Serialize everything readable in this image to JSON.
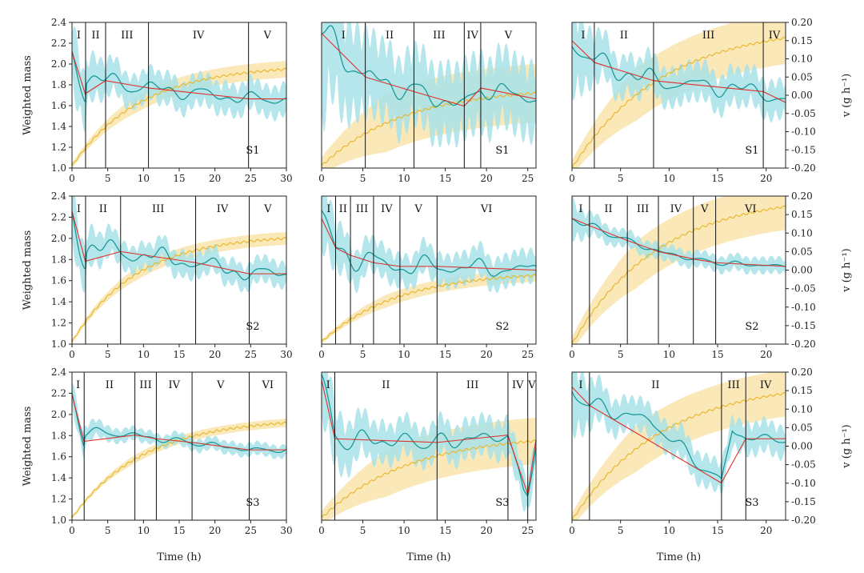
{
  "colors": {
    "mass": "#e8b830",
    "mass_band": "#fbe5b0",
    "rate": "#1a9a9a",
    "rate_band": "#a8e2e8",
    "fit": "#e0302a",
    "boundary": "#111111"
  },
  "axes": {
    "left_label": "Weighted mass",
    "right_label": "v (g h⁻¹)",
    "x_label": "Time (h)",
    "left_ticks": [
      "1.0",
      "1.2",
      "1.4",
      "1.6",
      "1.8",
      "2.0",
      "2.2",
      "2.4"
    ],
    "right_ticks": [
      "-0.20",
      "-0.15",
      "-0.10",
      "-0.05",
      "0.00",
      "0.05",
      "0.10",
      "0.15",
      "0.20"
    ]
  },
  "chart_data": [
    {
      "type": "line",
      "sample": "S1",
      "xmax": 30,
      "xticks": [
        0,
        5,
        10,
        15,
        20,
        25,
        30
      ],
      "boundaries": [
        1.9,
        4.7,
        10.7,
        24.7
      ],
      "phases": [
        "I",
        "II",
        "III",
        "IV",
        "V"
      ],
      "mass_start": 1.02,
      "mass_end": 1.95,
      "mass_shape": 0.32,
      "mass_band": 0.08,
      "rate_base": [
        [
          0,
          0.12
        ],
        [
          1.9,
          0.0
        ],
        [
          2.0,
          0.05
        ],
        [
          4.7,
          0.04
        ],
        [
          10.7,
          0.02
        ],
        [
          24.7,
          -0.01
        ],
        [
          30,
          -0.01
        ]
      ],
      "rate_osc": 0.035,
      "rate_band": 0.05,
      "ylim": [
        1.0,
        2.4
      ],
      "v_lim": [
        -0.2,
        0.2
      ]
    },
    {
      "type": "line",
      "sample": "S1",
      "xmax": 26,
      "xticks": [
        0,
        5,
        10,
        15,
        20,
        25
      ],
      "boundaries": [
        5.3,
        11.2,
        17.3,
        19.3
      ],
      "phases": [
        "I",
        "II",
        "III",
        "IV",
        "V"
      ],
      "mass_start": 1.02,
      "mass_end": 1.72,
      "mass_shape": 0.38,
      "mass_band": 0.28,
      "rate_base": [
        [
          0,
          0.17
        ],
        [
          5.3,
          0.05
        ],
        [
          11.2,
          0.01
        ],
        [
          17.3,
          -0.03
        ],
        [
          19.3,
          0.02
        ],
        [
          26,
          -0.01
        ]
      ],
      "rate_osc": 0.05,
      "rate_band": 0.12,
      "ylim": [
        1.0,
        2.4
      ],
      "v_lim": [
        -0.2,
        0.2
      ]
    },
    {
      "type": "line",
      "sample": "S1",
      "xmax": 22,
      "xticks": [
        0,
        5,
        10,
        15,
        20
      ],
      "boundaries": [
        2.3,
        8.4,
        19.7
      ],
      "phases": [
        "I",
        "II",
        "III",
        "IV"
      ],
      "mass_start": 1.0,
      "mass_end": 2.25,
      "mass_shape": 0.42,
      "mass_band": 0.25,
      "rate_base": [
        [
          0,
          0.15
        ],
        [
          2.3,
          0.09
        ],
        [
          8.4,
          0.04
        ],
        [
          19.7,
          0.01
        ],
        [
          22,
          -0.02
        ]
      ],
      "rate_osc": 0.045,
      "rate_band": 0.06,
      "ylim": [
        1.0,
        2.4
      ],
      "v_lim": [
        -0.2,
        0.2
      ]
    },
    {
      "type": "line",
      "sample": "S2",
      "xmax": 30,
      "xticks": [
        0,
        5,
        10,
        15,
        20,
        25,
        30
      ],
      "boundaries": [
        1.9,
        6.8,
        17.3,
        24.8
      ],
      "phases": [
        "I",
        "II",
        "III",
        "IV",
        "V"
      ],
      "mass_start": 1.02,
      "mass_end": 2.0,
      "mass_shape": 0.3,
      "mass_band": 0.06,
      "rate_base": [
        [
          0,
          0.16
        ],
        [
          1.9,
          0.02
        ],
        [
          2.0,
          0.06
        ],
        [
          6.8,
          0.05
        ],
        [
          17.3,
          0.02
        ],
        [
          24.8,
          -0.01
        ],
        [
          30,
          -0.01
        ]
      ],
      "rate_osc": 0.04,
      "rate_band": 0.04,
      "ylim": [
        1.0,
        2.4
      ],
      "v_lim": [
        -0.2,
        0.2
      ]
    },
    {
      "type": "line",
      "sample": "S2",
      "xmax": 26,
      "xticks": [
        0,
        5,
        10,
        15,
        20,
        25
      ],
      "boundaries": [
        1.7,
        3.5,
        6.3,
        9.5,
        14.0
      ],
      "phases": [
        "I",
        "II",
        "III",
        "IV",
        "V",
        "VI"
      ],
      "mass_start": 1.02,
      "mass_end": 1.65,
      "mass_shape": 0.35,
      "mass_band": 0.06,
      "rate_base": [
        [
          0,
          0.14
        ],
        [
          1.7,
          0.06
        ],
        [
          3.5,
          0.04
        ],
        [
          6.3,
          0.02
        ],
        [
          9.5,
          0.01
        ],
        [
          14,
          0.01
        ],
        [
          26,
          0.0
        ]
      ],
      "rate_osc": 0.045,
      "rate_band": 0.05,
      "ylim": [
        1.0,
        2.4
      ],
      "v_lim": [
        -0.2,
        0.2
      ]
    },
    {
      "type": "line",
      "sample": "S2",
      "xmax": 22,
      "xticks": [
        0,
        5,
        10,
        15,
        20
      ],
      "boundaries": [
        1.8,
        5.7,
        8.9,
        12.5,
        14.8
      ],
      "phases": [
        "I",
        "II",
        "III",
        "IV",
        "V",
        "VI"
      ],
      "mass_start": 1.0,
      "mass_end": 2.3,
      "mass_shape": 0.4,
      "mass_band": 0.22,
      "rate_base": [
        [
          0,
          0.14
        ],
        [
          1.8,
          0.12
        ],
        [
          5.7,
          0.08
        ],
        [
          8.9,
          0.05
        ],
        [
          12.5,
          0.03
        ],
        [
          14.8,
          0.02
        ],
        [
          22,
          0.01
        ]
      ],
      "rate_osc": 0.012,
      "rate_band": 0.025,
      "ylim": [
        1.0,
        2.4
      ],
      "v_lim": [
        -0.2,
        0.2
      ]
    },
    {
      "type": "line",
      "sample": "S3",
      "xmax": 30,
      "xticks": [
        0,
        5,
        10,
        15,
        20,
        25,
        30
      ],
      "boundaries": [
        1.7,
        8.8,
        11.8,
        16.8,
        24.8
      ],
      "phases": [
        "I",
        "II",
        "III",
        "IV",
        "V",
        "VI"
      ],
      "mass_start": 1.02,
      "mass_end": 1.92,
      "mass_shape": 0.33,
      "mass_band": 0.04,
      "rate_base": [
        [
          0,
          0.14
        ],
        [
          1.7,
          0.01
        ],
        [
          1.8,
          0.04
        ],
        [
          8.8,
          0.03
        ],
        [
          11.8,
          0.02
        ],
        [
          16.8,
          0.01
        ],
        [
          24.8,
          -0.01
        ],
        [
          30,
          -0.01
        ]
      ],
      "rate_osc": 0.015,
      "rate_band": 0.02,
      "ylim": [
        1.0,
        2.4
      ],
      "v_lim": [
        -0.2,
        0.2
      ]
    },
    {
      "type": "line",
      "sample": "S3",
      "xmax": 26,
      "xticks": [
        0,
        5,
        10,
        15,
        20,
        25
      ],
      "boundaries": [
        1.6,
        14.0,
        22.6,
        25.0
      ],
      "phases": [
        "I",
        "II",
        "III",
        "IV",
        "V"
      ],
      "mass_start": 1.02,
      "mass_end": 1.75,
      "mass_shape": 0.4,
      "mass_band": 0.22,
      "rate_base": [
        [
          0,
          0.18
        ],
        [
          1.6,
          0.02
        ],
        [
          14,
          0.01
        ],
        [
          22.6,
          0.03
        ],
        [
          24.5,
          -0.13
        ],
        [
          25,
          -0.13
        ],
        [
          26,
          0.02
        ]
      ],
      "rate_osc": 0.04,
      "rate_band": 0.06,
      "ylim": [
        1.0,
        2.4
      ],
      "v_lim": [
        -0.2,
        0.2
      ]
    },
    {
      "type": "line",
      "sample": "S3",
      "xmax": 22,
      "xticks": [
        0,
        5,
        10,
        15,
        20
      ],
      "boundaries": [
        1.8,
        15.4,
        17.9
      ],
      "phases": [
        "I",
        "II",
        "III",
        "IV"
      ],
      "mass_start": 1.0,
      "mass_end": 2.2,
      "mass_shape": 0.42,
      "mass_band": 0.22,
      "rate_base": [
        [
          0,
          0.16
        ],
        [
          1.8,
          0.11
        ],
        [
          8,
          0.07
        ],
        [
          15.4,
          -0.1
        ],
        [
          16.5,
          0.05
        ],
        [
          17.9,
          0.02
        ],
        [
          22,
          0.02
        ]
      ],
      "rate_osc": 0.03,
      "rate_band": 0.05,
      "ylim": [
        1.0,
        2.4
      ],
      "v_lim": [
        -0.2,
        0.2
      ]
    }
  ]
}
